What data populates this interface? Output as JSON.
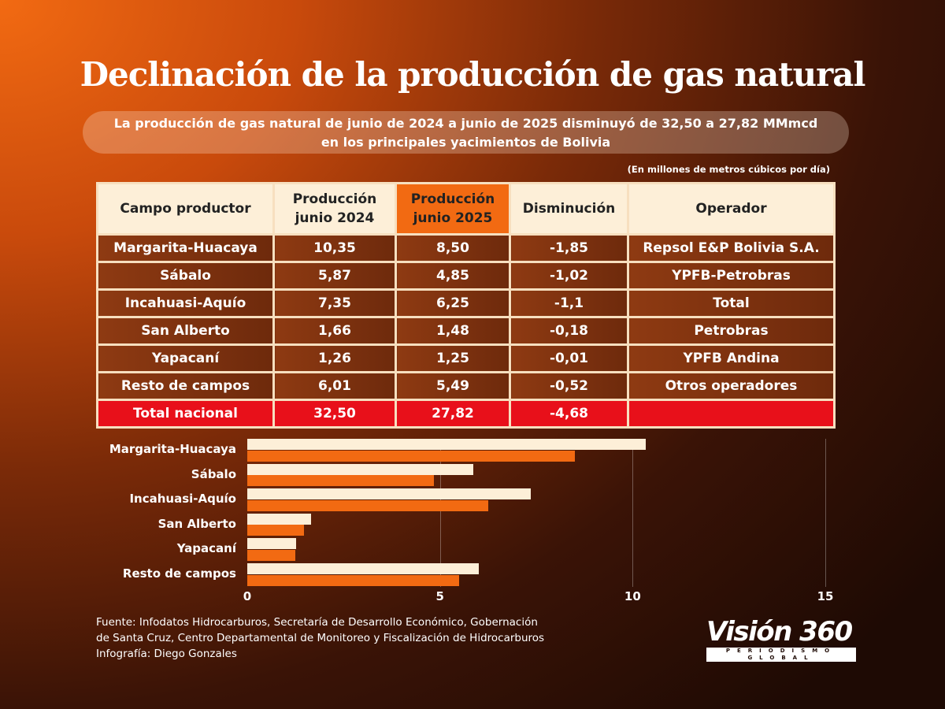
{
  "title": "Declinación de la producción de gas natural",
  "subtitle_line1": "La producción de gas natural de junio de 2024 a junio de 2025 disminuyó de 32,50 a 27,82 MMmcd",
  "subtitle_line2": "en los principales yacimientos de Bolivia",
  "unit_note": "(En millones de metros cúbicos por día)",
  "table": {
    "headers": [
      "Campo productor",
      "Producción junio 2024",
      "Producción junio 2025",
      "Disminución",
      "Operador"
    ],
    "rows": [
      [
        "Margarita-Huacaya",
        "10,35",
        "8,50",
        "-1,85",
        "Repsol E&P Bolivia S.A."
      ],
      [
        "Sábalo",
        "5,87",
        "4,85",
        "-1,02",
        "YPFB-Petrobras"
      ],
      [
        "Incahuasi-Aquío",
        "7,35",
        "6,25",
        "-1,1",
        "Total"
      ],
      [
        "San Alberto",
        "1,66",
        "1,48",
        "-0,18",
        "Petrobras"
      ],
      [
        "Yapacaní",
        "1,26",
        "1,25",
        "-0,01",
        "YPFB Andina"
      ],
      [
        "Resto de campos",
        "6,01",
        "5,49",
        "-0,52",
        "Otros operadores"
      ]
    ],
    "total": [
      "Total nacional",
      "32,50",
      "27,82",
      "-4,68",
      ""
    ]
  },
  "chart_data": {
    "type": "bar",
    "orientation": "horizontal",
    "categories": [
      "Margarita-Huacaya",
      "Sábalo",
      "Incahuasi-Aquío",
      "San Alberto",
      "Yapacaní",
      "Resto de campos"
    ],
    "series": [
      {
        "name": "Producción junio 2024",
        "values": [
          10.35,
          5.87,
          7.35,
          1.66,
          1.26,
          6.01
        ],
        "color": "#fdefd8"
      },
      {
        "name": "Producción junio 2025",
        "values": [
          8.5,
          4.85,
          6.25,
          1.48,
          1.25,
          5.49
        ],
        "color": "#f26a12"
      }
    ],
    "xlim": [
      0,
      15
    ],
    "xticks": [
      "0",
      "5",
      "10",
      "15"
    ],
    "grid": true
  },
  "source": [
    "Fuente: Infodatos Hidrocarburos, Secretaría de Desarrollo Económico, Gobernación",
    "de Santa Cruz, Centro Departamental de Monitoreo y Fiscalización de Hidrocarburos",
    "Infografía: Diego Gonzales"
  ],
  "logo": {
    "name": "Visión 360",
    "tagline": "PERIODISMO GLOBAL"
  }
}
